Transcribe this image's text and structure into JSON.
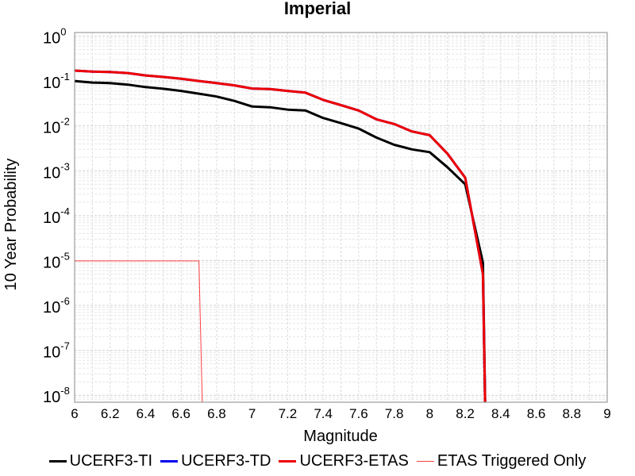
{
  "chart_data": {
    "type": "line",
    "title": "Imperial",
    "xlabel": "Magnitude",
    "ylabel": "10 Year Probability",
    "xlim": [
      6,
      9
    ],
    "ylim": [
      7e-09,
      1.2
    ],
    "yscale": "log",
    "grid": true,
    "legend_position": "bottom",
    "x_ticks": [
      "6",
      "6.2",
      "6.4",
      "6.6",
      "6.8",
      "7",
      "7.2",
      "7.4",
      "7.6",
      "7.8",
      "8",
      "8.2",
      "8.4",
      "8.6",
      "8.8",
      "9"
    ],
    "y_ticks": [
      {
        "base": "10",
        "exp": "0"
      },
      {
        "base": "10",
        "exp": "-1"
      },
      {
        "base": "10",
        "exp": "-2"
      },
      {
        "base": "10",
        "exp": "-3"
      },
      {
        "base": "10",
        "exp": "-4"
      },
      {
        "base": "10",
        "exp": "-5"
      },
      {
        "base": "10",
        "exp": "-6"
      },
      {
        "base": "10",
        "exp": "-7"
      },
      {
        "base": "10",
        "exp": "-8"
      }
    ],
    "series": [
      {
        "name": "UCERF3-TI",
        "color": "#000000",
        "x": [
          6.0,
          6.1,
          6.2,
          6.3,
          6.4,
          6.5,
          6.6,
          6.7,
          6.8,
          6.9,
          7.0,
          7.1,
          7.2,
          7.3,
          7.4,
          7.5,
          7.6,
          7.7,
          7.8,
          7.9,
          8.0,
          8.1,
          8.2,
          8.3,
          8.32
        ],
        "y": [
          0.1,
          0.092,
          0.09,
          0.083,
          0.073,
          0.067,
          0.06,
          0.052,
          0.045,
          0.036,
          0.027,
          0.026,
          0.023,
          0.022,
          0.015,
          0.0115,
          0.0087,
          0.0055,
          0.0038,
          0.003,
          0.0026,
          0.0012,
          0.0005,
          9e-06,
          1e-10
        ]
      },
      {
        "name": "UCERF3-TD",
        "color": "#0000ee",
        "x": [
          6.0,
          6.1,
          6.2,
          6.3,
          6.4,
          6.5,
          6.6,
          6.7,
          6.8,
          6.9,
          7.0,
          7.1,
          7.2,
          7.3,
          7.4,
          7.5,
          7.6,
          7.7,
          7.8,
          7.9,
          8.0,
          8.1,
          8.2,
          8.3,
          8.32
        ],
        "y": [
          0.17,
          0.162,
          0.158,
          0.15,
          0.133,
          0.123,
          0.112,
          0.1,
          0.09,
          0.08,
          0.068,
          0.066,
          0.06,
          0.055,
          0.038,
          0.029,
          0.022,
          0.014,
          0.011,
          0.0075,
          0.0062,
          0.0024,
          0.0007,
          5e-06,
          1e-10
        ]
      },
      {
        "name": "UCERF3-ETAS",
        "color": "#ee0000",
        "x": [
          6.0,
          6.1,
          6.2,
          6.3,
          6.4,
          6.5,
          6.6,
          6.7,
          6.8,
          6.9,
          7.0,
          7.1,
          7.2,
          7.3,
          7.4,
          7.5,
          7.6,
          7.7,
          7.8,
          7.9,
          8.0,
          8.1,
          8.2,
          8.3,
          8.32
        ],
        "y": [
          0.17,
          0.162,
          0.158,
          0.15,
          0.133,
          0.123,
          0.112,
          0.1,
          0.09,
          0.08,
          0.068,
          0.066,
          0.06,
          0.055,
          0.038,
          0.029,
          0.022,
          0.014,
          0.011,
          0.0075,
          0.0062,
          0.0024,
          0.0007,
          5e-06,
          1e-10
        ]
      },
      {
        "name": "ETAS Triggered Only",
        "color": "#ff4040",
        "x": [
          6.0,
          6.7,
          6.73
        ],
        "y": [
          9.8e-06,
          9.8e-06,
          1e-10
        ]
      }
    ]
  },
  "legend": {
    "items": [
      {
        "label": "UCERF3-TI",
        "color": "#000000"
      },
      {
        "label": "UCERF3-TD",
        "color": "#0000ee"
      },
      {
        "label": "UCERF3-ETAS",
        "color": "#ee0000"
      },
      {
        "label": "ETAS Triggered Only",
        "color": "#ff4040"
      }
    ]
  }
}
